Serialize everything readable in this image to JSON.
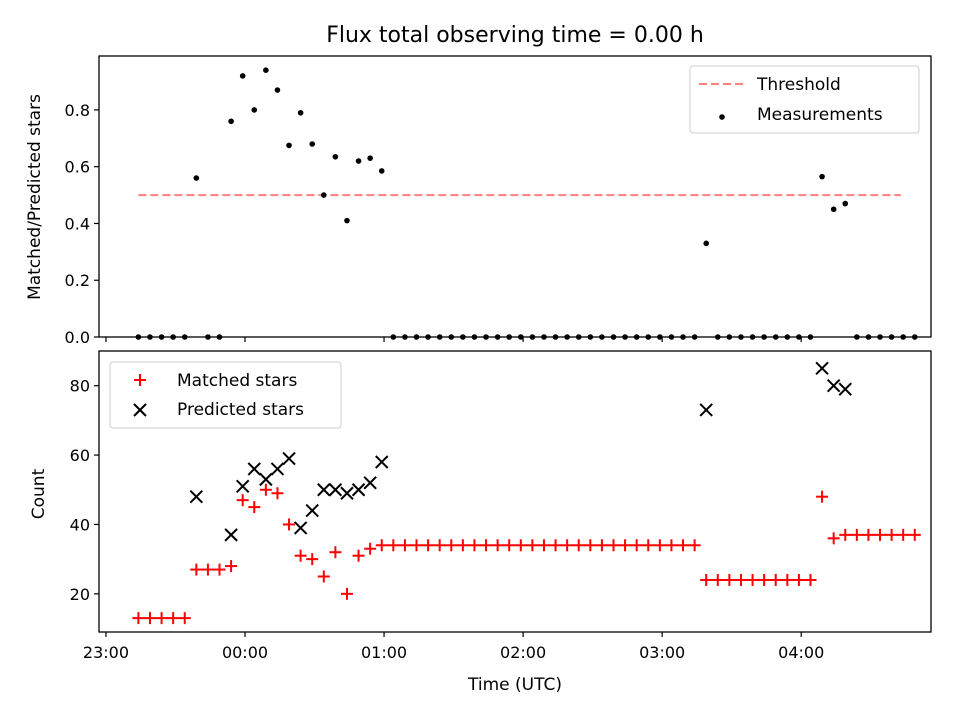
{
  "figure": {
    "title": "Flux total observing time = 0.00 h"
  },
  "chart_data": [
    {
      "type": "scatter",
      "panel": "top",
      "title": "Flux total observing time = 0.00 h",
      "xlabel": "",
      "ylabel": "Matched/Predicted stars",
      "xlim": [
        -63,
        296
      ],
      "ylim": [
        0,
        0.99
      ],
      "yticks": [
        0.0,
        0.2,
        0.4,
        0.6,
        0.8
      ],
      "ytick_labels": [
        "0.0",
        "0.2",
        "0.4",
        "0.6",
        "0.8"
      ],
      "xticks": [
        -60,
        0,
        60,
        120,
        180,
        240
      ],
      "legend_position": "top-right",
      "grid": false,
      "threshold": {
        "name": "Threshold",
        "value": 0.5,
        "x_range": [
          -46,
          283
        ],
        "color": "#ff7f7f",
        "style": "dashed"
      },
      "measurements": {
        "name": "Measurements",
        "color": "#000000",
        "points": [
          [
            -46,
            0
          ],
          [
            -41,
            0
          ],
          [
            -36,
            0
          ],
          [
            -31,
            0
          ],
          [
            -26,
            0
          ],
          [
            -21,
            0.56
          ],
          [
            -16,
            0
          ],
          [
            -11,
            0
          ],
          [
            -6,
            0.76
          ],
          [
            -1,
            0.92
          ],
          [
            4,
            0.8
          ],
          [
            9,
            0.94
          ],
          [
            14,
            0.87
          ],
          [
            19,
            0.675
          ],
          [
            24,
            0.79
          ],
          [
            29,
            0.68
          ],
          [
            34,
            0.5
          ],
          [
            39,
            0.635
          ],
          [
            44,
            0.41
          ],
          [
            49,
            0.62
          ],
          [
            54,
            0.63
          ],
          [
            59,
            0.585
          ],
          [
            64,
            0
          ],
          [
            69,
            0
          ],
          [
            74,
            0
          ],
          [
            79,
            0
          ],
          [
            84,
            0
          ],
          [
            89,
            0
          ],
          [
            94,
            0
          ],
          [
            99,
            0
          ],
          [
            104,
            0
          ],
          [
            109,
            0
          ],
          [
            114,
            0
          ],
          [
            119,
            0
          ],
          [
            124,
            0
          ],
          [
            129,
            0
          ],
          [
            134,
            0
          ],
          [
            139,
            0
          ],
          [
            144,
            0
          ],
          [
            149,
            0
          ],
          [
            154,
            0
          ],
          [
            159,
            0
          ],
          [
            164,
            0
          ],
          [
            169,
            0
          ],
          [
            174,
            0
          ],
          [
            179,
            0
          ],
          [
            184,
            0
          ],
          [
            189,
            0
          ],
          [
            194,
            0
          ],
          [
            199,
            0.33
          ],
          [
            204,
            0
          ],
          [
            209,
            0
          ],
          [
            214,
            0
          ],
          [
            219,
            0
          ],
          [
            224,
            0
          ],
          [
            229,
            0
          ],
          [
            234,
            0
          ],
          [
            239,
            0
          ],
          [
            244,
            0
          ],
          [
            249,
            0.565
          ],
          [
            254,
            0.45
          ],
          [
            259,
            0.47
          ],
          [
            264,
            0
          ],
          [
            269,
            0
          ],
          [
            274,
            0
          ],
          [
            279,
            0
          ],
          [
            284,
            0
          ],
          [
            289,
            0
          ]
        ]
      }
    },
    {
      "type": "scatter",
      "panel": "bottom",
      "xlabel": "Time (UTC)",
      "ylabel": "Count",
      "xlim": [
        -63,
        296
      ],
      "ylim": [
        9,
        90
      ],
      "yticks": [
        20,
        40,
        60,
        80
      ],
      "ytick_labels": [
        "20",
        "40",
        "60",
        "80"
      ],
      "xticks": [
        -60,
        0,
        60,
        120,
        180,
        240
      ],
      "xtick_labels": [
        "23:00",
        "00:00",
        "01:00",
        "02:00",
        "03:00",
        "04:00"
      ],
      "legend_position": "top-left",
      "grid": false,
      "series": [
        {
          "name": "Matched stars",
          "marker": "plus",
          "color": "#ff0000",
          "points": [
            [
              -46,
              13
            ],
            [
              -41,
              13
            ],
            [
              -36,
              13
            ],
            [
              -31,
              13
            ],
            [
              -26,
              13
            ],
            [
              -21,
              27
            ],
            [
              -16,
              27
            ],
            [
              -11,
              27
            ],
            [
              -6,
              28
            ],
            [
              -1,
              47
            ],
            [
              4,
              45
            ],
            [
              9,
              50
            ],
            [
              14,
              49
            ],
            [
              19,
              40
            ],
            [
              24,
              31
            ],
            [
              29,
              30
            ],
            [
              34,
              25
            ],
            [
              39,
              32
            ],
            [
              44,
              20
            ],
            [
              49,
              31
            ],
            [
              54,
              33
            ],
            [
              59,
              34
            ],
            [
              64,
              34
            ],
            [
              69,
              34
            ],
            [
              74,
              34
            ],
            [
              79,
              34
            ],
            [
              84,
              34
            ],
            [
              89,
              34
            ],
            [
              94,
              34
            ],
            [
              99,
              34
            ],
            [
              104,
              34
            ],
            [
              109,
              34
            ],
            [
              114,
              34
            ],
            [
              119,
              34
            ],
            [
              124,
              34
            ],
            [
              129,
              34
            ],
            [
              134,
              34
            ],
            [
              139,
              34
            ],
            [
              144,
              34
            ],
            [
              149,
              34
            ],
            [
              154,
              34
            ],
            [
              159,
              34
            ],
            [
              164,
              34
            ],
            [
              169,
              34
            ],
            [
              174,
              34
            ],
            [
              179,
              34
            ],
            [
              184,
              34
            ],
            [
              189,
              34
            ],
            [
              194,
              34
            ],
            [
              199,
              24
            ],
            [
              204,
              24
            ],
            [
              209,
              24
            ],
            [
              214,
              24
            ],
            [
              219,
              24
            ],
            [
              224,
              24
            ],
            [
              229,
              24
            ],
            [
              234,
              24
            ],
            [
              239,
              24
            ],
            [
              244,
              24
            ],
            [
              249,
              48
            ],
            [
              254,
              36
            ],
            [
              259,
              37
            ],
            [
              264,
              37
            ],
            [
              269,
              37
            ],
            [
              274,
              37
            ],
            [
              279,
              37
            ],
            [
              284,
              37
            ],
            [
              289,
              37
            ]
          ]
        },
        {
          "name": "Predicted stars",
          "marker": "x",
          "color": "#000000",
          "points": [
            [
              -21,
              48
            ],
            [
              -6,
              37
            ],
            [
              -1,
              51
            ],
            [
              4,
              56
            ],
            [
              9,
              53
            ],
            [
              14,
              56
            ],
            [
              19,
              59
            ],
            [
              24,
              39
            ],
            [
              29,
              44
            ],
            [
              34,
              50
            ],
            [
              39,
              50
            ],
            [
              44,
              49
            ],
            [
              49,
              50
            ],
            [
              54,
              52
            ],
            [
              59,
              58
            ],
            [
              199,
              73
            ],
            [
              249,
              85
            ],
            [
              254,
              80
            ],
            [
              259,
              79
            ]
          ]
        }
      ]
    }
  ]
}
